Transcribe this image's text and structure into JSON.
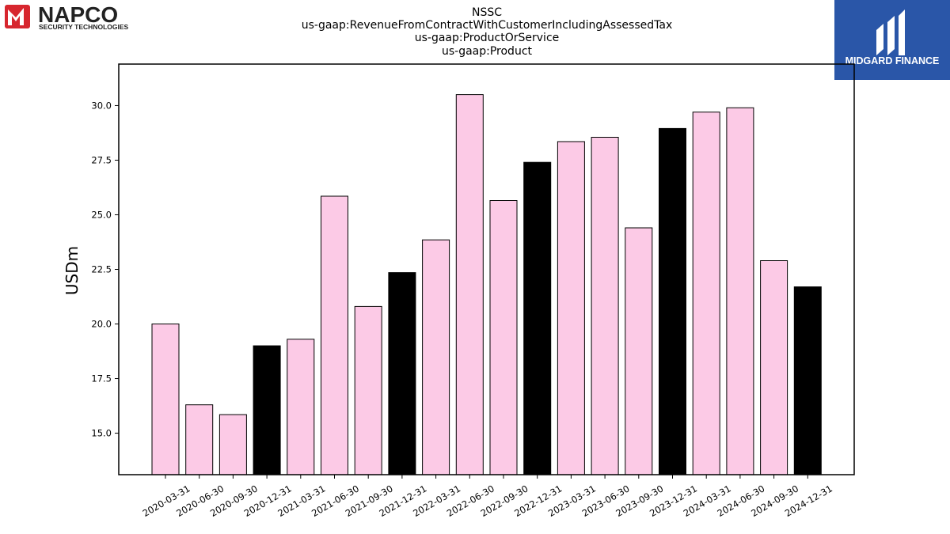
{
  "logos": {
    "left": {
      "name": "NAPCO",
      "tagline": "SECURITY TECHNOLOGIES",
      "accent": "#d7262e"
    },
    "right": {
      "name": "MIDGARD FINANCE",
      "background": "#2a56a8"
    }
  },
  "colors": {
    "quarter": "#fccae6",
    "year_end": "#000000",
    "edge": "#000000"
  },
  "chart_data": {
    "type": "bar",
    "title": [
      "NSSC",
      "us-gaap:RevenueFromContractWithCustomerIncludingAssessedTax",
      "us-gaap:ProductOrService",
      "us-gaap:Product"
    ],
    "xlabel": "",
    "ylabel": "USDm",
    "ylim": [
      13.1,
      31.9
    ],
    "yticks": [
      "15.0",
      "17.5",
      "20.0",
      "22.5",
      "25.0",
      "27.5",
      "30.0"
    ],
    "grid": false,
    "categories": [
      "2020-03-31",
      "2020-06-30",
      "2020-09-30",
      "2020-12-31",
      "2021-03-31",
      "2021-06-30",
      "2021-09-30",
      "2021-12-31",
      "2022-03-31",
      "2022-06-30",
      "2022-09-30",
      "2022-12-31",
      "2023-03-31",
      "2023-06-30",
      "2023-09-30",
      "2023-12-31",
      "2024-03-31",
      "2024-06-30",
      "2024-09-30",
      "2024-12-31"
    ],
    "values": [
      20.0,
      16.3,
      15.85,
      19.0,
      19.3,
      25.85,
      20.8,
      22.35,
      23.85,
      30.5,
      25.65,
      27.4,
      28.35,
      28.55,
      24.4,
      28.95,
      29.7,
      29.9,
      22.9,
      21.7
    ],
    "highlight": [
      false,
      false,
      false,
      true,
      false,
      false,
      false,
      true,
      false,
      false,
      false,
      true,
      false,
      false,
      false,
      true,
      false,
      false,
      false,
      true
    ]
  }
}
